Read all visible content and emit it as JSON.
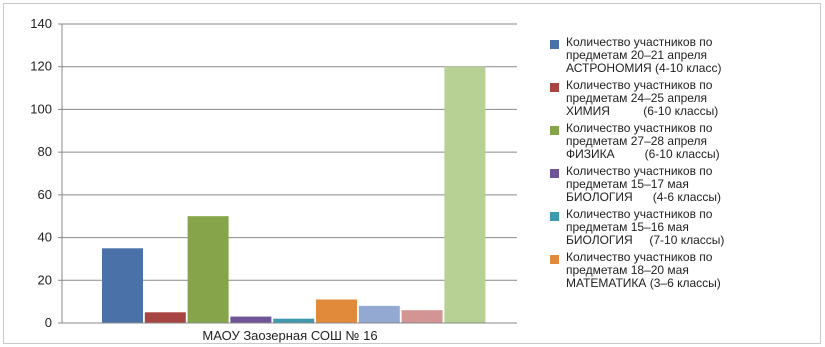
{
  "chart_data": {
    "type": "bar",
    "categories": [
      "МАОУ Заозерная СОШ № 16"
    ],
    "ylim": [
      0,
      140
    ],
    "yticks": [
      0,
      20,
      40,
      60,
      80,
      100,
      120,
      140
    ],
    "grid": true,
    "legend_position": "right",
    "series": [
      {
        "name": "Количество участников по предметам 20–21 апреля АСТРОНОМИЯ (4-10 класс)",
        "legend_lines": [
          "Количество участников по",
          "предметам 20–21 апреля",
          "АСТРОНОМИЯ (4-10 класс)"
        ],
        "value": 35,
        "color": "#4a72a8"
      },
      {
        "name": "Количество участников по предметам 24–25 апреля ХИМИЯ (6-10 классы)",
        "legend_lines": [
          "Количество участников по",
          "предметам 24–25 апреля",
          "ХИМИЯ          (6-10 классы)"
        ],
        "value": 5,
        "color": "#a84442"
      },
      {
        "name": "Количество участников по предметам 27–28 апреля ФИЗИКА (6-10 классы)",
        "legend_lines": [
          "Количество участников по",
          "предметам 27–28 апреля",
          "ФИЗИКА         (6-10 классы)"
        ],
        "value": 50,
        "color": "#86a44a"
      },
      {
        "name": "Количество участников по предметам 15–17 мая БИОЛОГИЯ (4-6 классы)",
        "legend_lines": [
          "Количество участников по",
          "предметам 15–17 мая",
          "БИОЛОГИЯ      (4-6 классы)"
        ],
        "value": 3,
        "color": "#6e5494"
      },
      {
        "name": "Количество участников по предметам 15–16 мая БИОЛОГИЯ (7-10 классы)",
        "legend_lines": [
          "Количество участников по",
          "предметам 15–16 мая",
          "БИОЛОГИЯ     (7-10 классы)"
        ],
        "value": 2,
        "color": "#3d9ab0"
      },
      {
        "name": "Количество участников по предметам 18–20 мая МАТЕМАТИКА (3–6 классы)",
        "legend_lines": [
          "Количество участников по",
          "предметам 18–20 мая",
          "МАТЕМАТИКА (3–6 классы)"
        ],
        "value": 11,
        "color": "#e08a3a"
      },
      {
        "name": "",
        "legend_lines": [],
        "value": 8,
        "color": "#93a9d1"
      },
      {
        "name": "",
        "legend_lines": [],
        "value": 6,
        "color": "#d29593"
      },
      {
        "name": "",
        "legend_lines": [],
        "value": 120,
        "color": "#b7d093"
      }
    ]
  }
}
